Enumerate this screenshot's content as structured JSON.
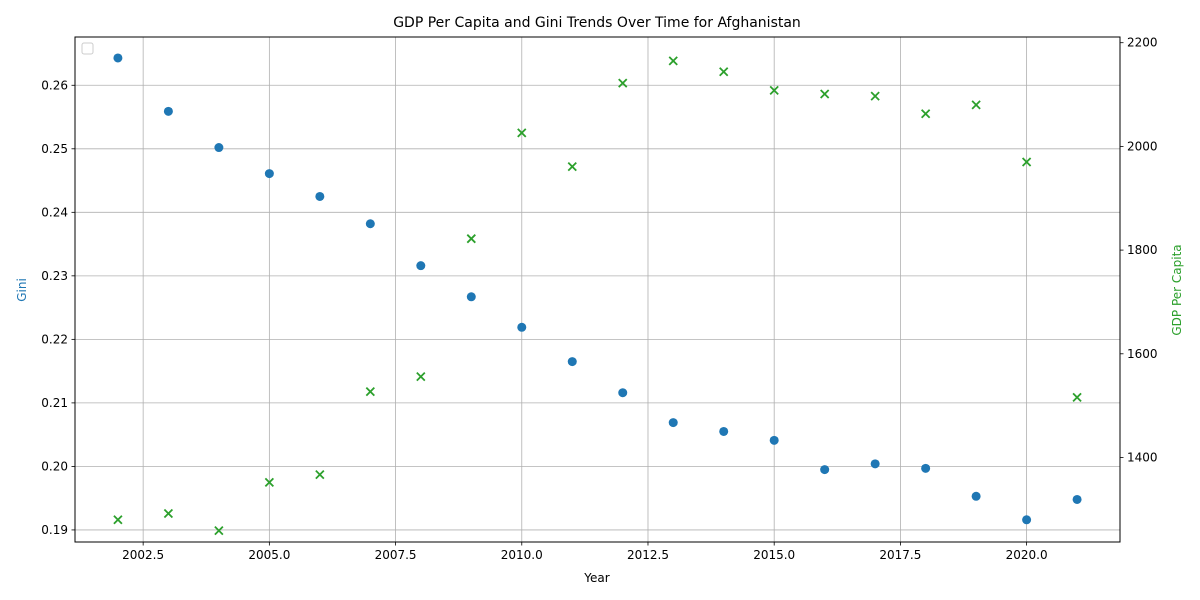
{
  "chart_data": {
    "type": "scatter",
    "title": "GDP Per Capita and Gini Trends Over Time for Afghanistan",
    "xlabel": "Year",
    "ylabel_left": "Gini",
    "ylabel_right": "GDP Per Capita",
    "xlim": [
      2001.15,
      2021.85
    ],
    "ylim_left": [
      0.1881,
      0.2676
    ],
    "ylim_right": [
      1237,
      2211
    ],
    "x_ticks": [
      2002.5,
      2005.0,
      2007.5,
      2010.0,
      2012.5,
      2015.0,
      2017.5,
      2020.0
    ],
    "x_tick_labels": [
      "2002.5",
      "2005.0",
      "2007.5",
      "2010.0",
      "2012.5",
      "2015.0",
      "2017.5",
      "2020.0"
    ],
    "y_left_ticks": [
      0.19,
      0.2,
      0.21,
      0.22,
      0.23,
      0.24,
      0.25,
      0.26
    ],
    "y_left_tick_labels": [
      "0.19",
      "0.20",
      "0.21",
      "0.22",
      "0.23",
      "0.24",
      "0.25",
      "0.26"
    ],
    "y_right_ticks": [
      1400,
      1600,
      1800,
      2000,
      2200
    ],
    "y_right_tick_labels": [
      "1400",
      "1600",
      "1800",
      "2000",
      "2200"
    ],
    "grid": true,
    "legend": "top-left",
    "colors": {
      "gini": "#1f77b4",
      "gdp": "#2ca02c"
    },
    "x": [
      2002,
      2003,
      2004,
      2005,
      2006,
      2007,
      2008,
      2009,
      2010,
      2011,
      2012,
      2013,
      2014,
      2015,
      2016,
      2017,
      2018,
      2019,
      2020,
      2021
    ],
    "series": [
      {
        "axis": "left",
        "marker": "circle",
        "values": [
          0.2643,
          0.2559,
          0.2502,
          0.2461,
          0.2425,
          0.2382,
          0.2316,
          0.2267,
          0.2219,
          0.2165,
          0.2116,
          0.2069,
          0.2055,
          0.2041,
          0.1995,
          0.2004,
          0.1997,
          0.1953,
          0.1916,
          0.1948
        ]
      },
      {
        "axis": "right",
        "marker": "x",
        "values": [
          1280,
          1292,
          1259,
          1352,
          1367,
          1527,
          1556,
          1822,
          2026,
          1961,
          2122,
          2165,
          2144,
          2108,
          2101,
          2097,
          2063,
          2080,
          1970,
          1516
        ]
      }
    ]
  }
}
